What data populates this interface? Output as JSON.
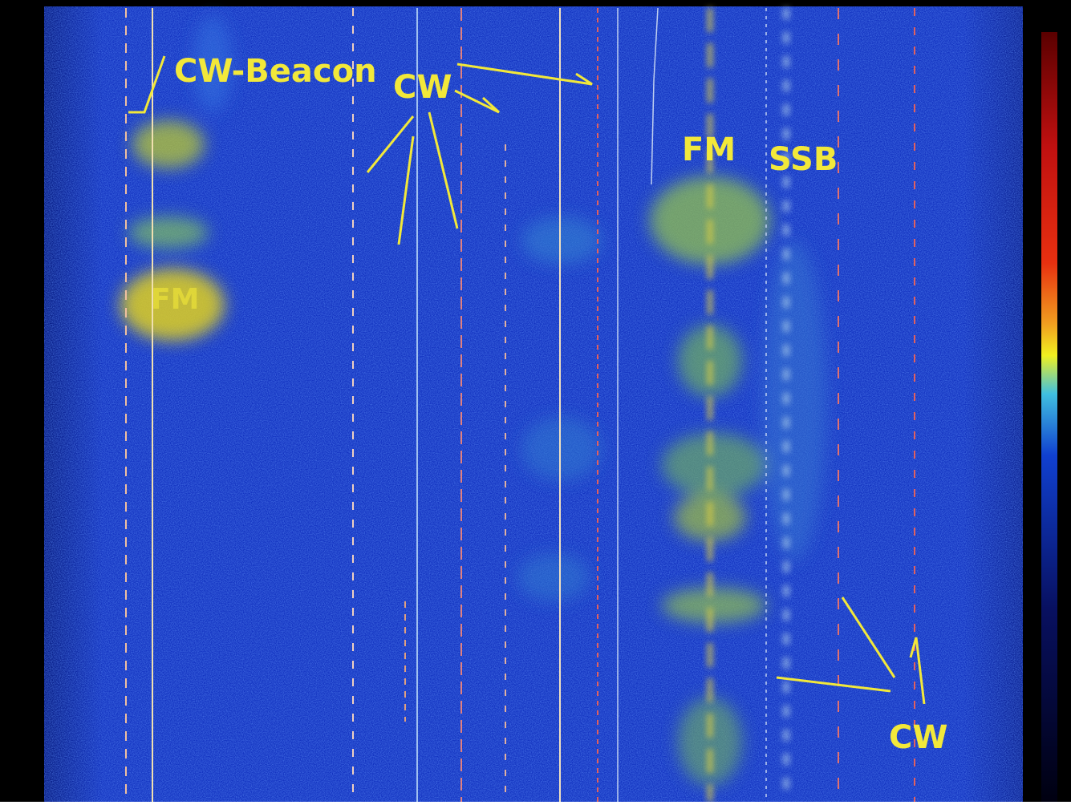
{
  "annotations": {
    "cw_beacon": "CW-Beacon",
    "cw_top": "CW",
    "fm_left": "FM",
    "fm_center": "FM",
    "ssb": "SSB",
    "cw_bottom": "CW"
  }
}
